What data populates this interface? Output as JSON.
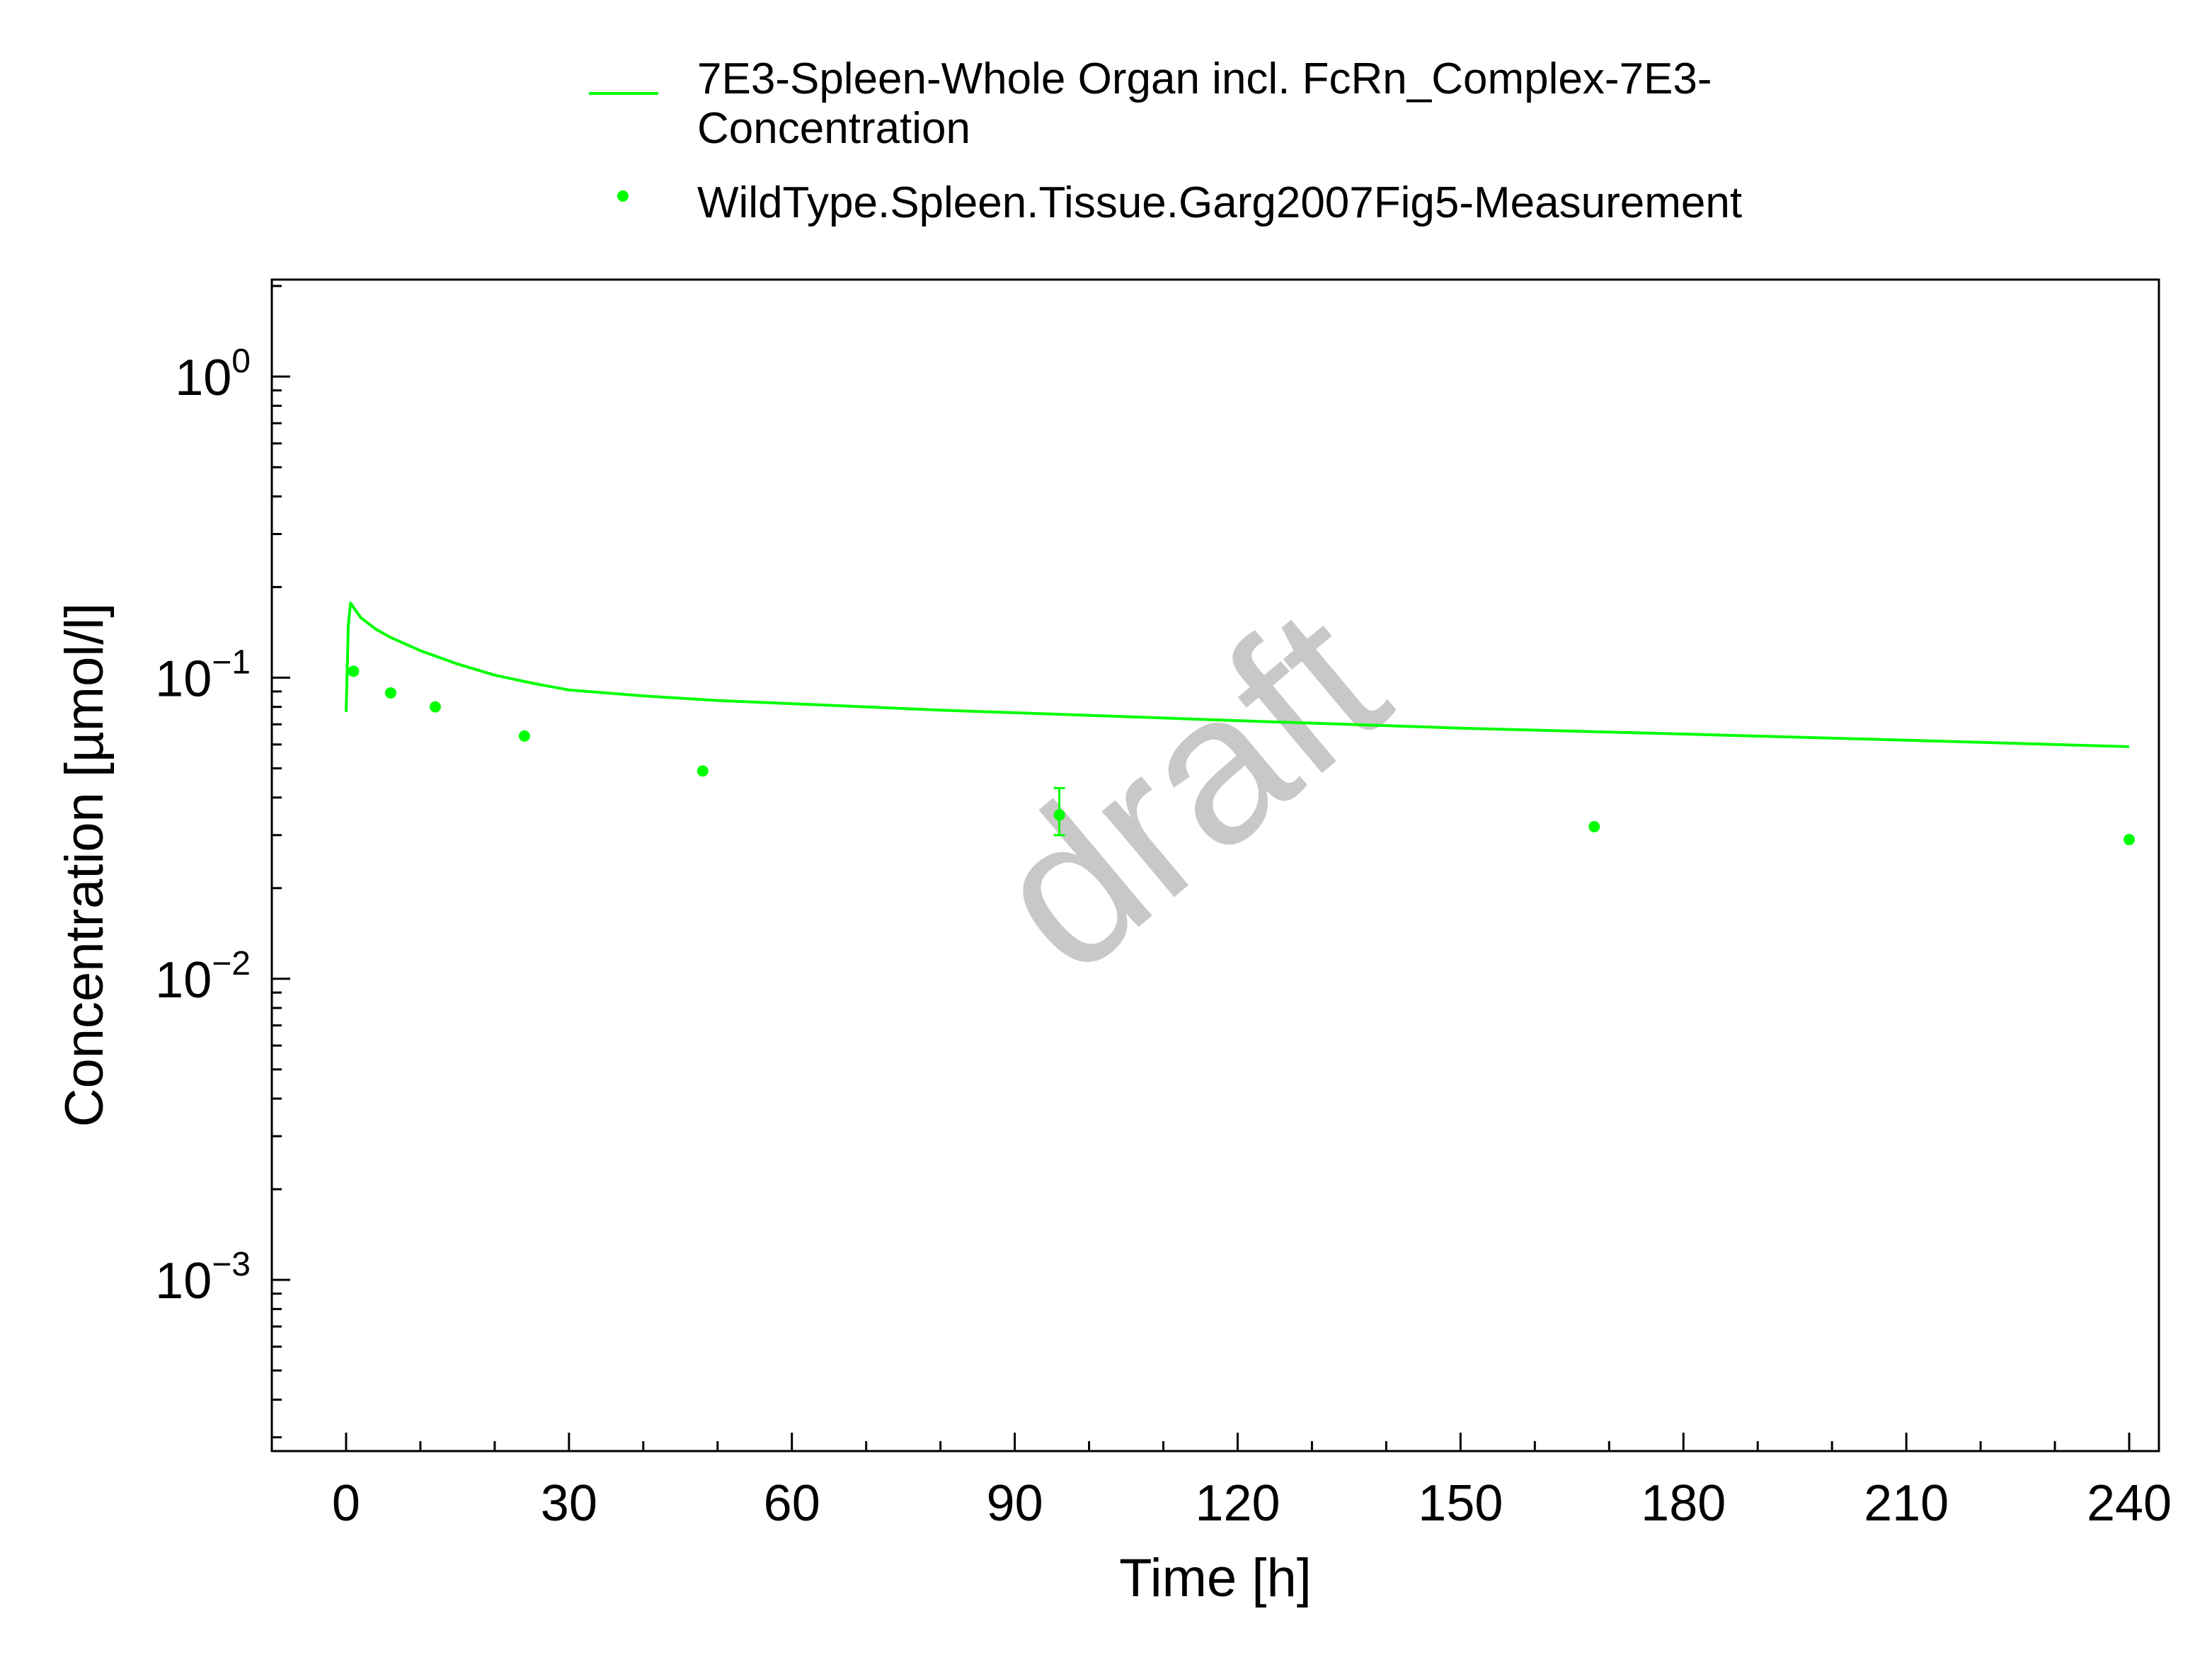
{
  "chart_data": {
    "type": "line",
    "x_scale": "linear",
    "y_scale": "log",
    "xlabel": "Time [h]",
    "ylabel": "Concentration [µmol/l]",
    "xlim": [
      -10,
      244
    ],
    "ylim": [
      0.00027,
      2.1
    ],
    "x_ticks": [
      0,
      30,
      60,
      90,
      120,
      150,
      180,
      210,
      240
    ],
    "x_tick_labels": [
      "0",
      "30",
      "60",
      "90",
      "120",
      "150",
      "180",
      "210",
      "240"
    ],
    "y_ticks": [
      {
        "value": 1,
        "base": "10",
        "exp": "0"
      },
      {
        "value": 0.1,
        "base": "10",
        "exp": "−1"
      },
      {
        "value": 0.01,
        "base": "10",
        "exp": "−2"
      },
      {
        "value": 0.001,
        "base": "10",
        "exp": "−3"
      }
    ],
    "grid": false,
    "legend_position": "top",
    "series": [
      {
        "name_lines": [
          "7E3-Spleen-Whole Organ incl. FcRn_Complex-7E3-",
          "Concentration"
        ],
        "kind": "line",
        "color": "#00ff00",
        "x": [
          0,
          0.3,
          0.6,
          1,
          2,
          4,
          6,
          10,
          15,
          20,
          25,
          30,
          40,
          50,
          60,
          80,
          100,
          120,
          150,
          180,
          210,
          240
        ],
        "y": [
          0.077,
          0.15,
          0.177,
          0.171,
          0.158,
          0.145,
          0.136,
          0.123,
          0.111,
          0.102,
          0.096,
          0.091,
          0.087,
          0.084,
          0.082,
          0.078,
          0.075,
          0.072,
          0.068,
          0.065,
          0.062,
          0.059
        ]
      },
      {
        "name": "WildType.Spleen.Tissue.Garg2007Fig5-Measurement",
        "kind": "scatter",
        "color": "#00ff00",
        "x": [
          1,
          6,
          12,
          24,
          48,
          96,
          168,
          240
        ],
        "y": [
          0.105,
          0.089,
          0.08,
          0.064,
          0.049,
          0.035,
          0.032,
          0.029
        ],
        "error_bars": [
          {
            "x": 96,
            "low": 0.03,
            "high": 0.043
          }
        ]
      }
    ],
    "annotations": [
      "draft"
    ]
  }
}
